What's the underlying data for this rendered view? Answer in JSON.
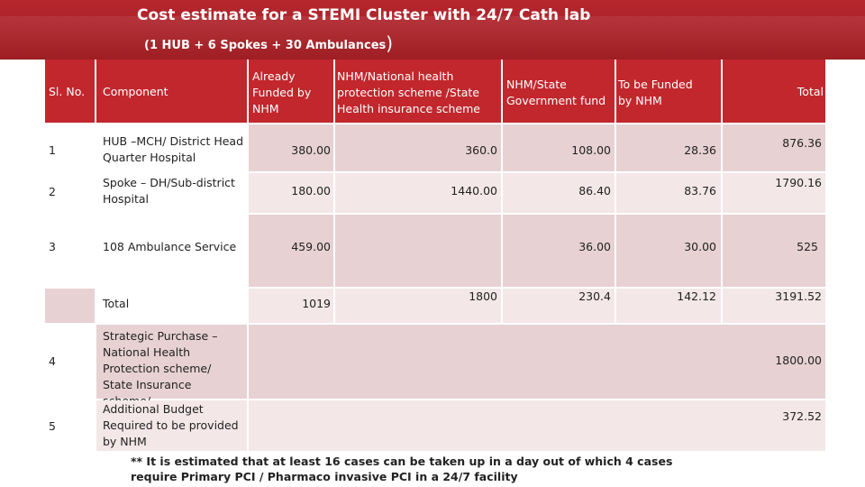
{
  "title": "Cost estimate for a STEMI Cluster with 24/7 Cath lab",
  "subtitle": "(1 HUB + 6 Spokes + 30 Ambulances",
  "subtitle_close": ")",
  "table": {
    "headers": {
      "sl_no": "Sl. No.",
      "component": "Component",
      "already_funded": "Already Funded by NHM",
      "nhm_national": "NHM/National health protection scheme /State Health insurance scheme",
      "nhm_state": "NHM/State Government fund",
      "to_be_funded": "To be Funded by NHM",
      "total": "Total"
    },
    "rows": [
      {
        "sl": "1",
        "component": "HUB –MCH/ District Head Quarter Hospital",
        "already_funded": "380.00",
        "nhm_national": "360.0",
        "nhm_state": "108.00",
        "to_be_funded": "28.36",
        "total": "876.36"
      },
      {
        "sl": "2",
        "component": "Spoke – DH/Sub-district Hospital",
        "already_funded": "180.00",
        "nhm_national": "1440.00",
        "nhm_state": "86.40",
        "to_be_funded": "83.76",
        "total": "1790.16"
      },
      {
        "sl": "3",
        "component": "108 Ambulance Service",
        "already_funded": "459.00",
        "nhm_national": "",
        "nhm_state": "36.00",
        "to_be_funded": "30.00",
        "total": "525"
      }
    ],
    "total_row": {
      "label": "Total",
      "already_funded": "1019",
      "nhm_national": "1800",
      "nhm_state": "230.4",
      "to_be_funded": "142.12",
      "total": "3191.52"
    },
    "extra_rows": [
      {
        "sl": "4",
        "component": "Strategic Purchase – National Health Protection scheme/ State Insurance scheme/",
        "total": "1800.00"
      },
      {
        "sl": "5",
        "component": "Additional Budget Required to be provided by NHM",
        "total": "372.52"
      }
    ]
  },
  "footnote": "** It is estimated that at least 16 cases can be taken up in a day out of which 4 cases require Primary PCI / Pharmaco invasive PCI in a 24/7 facility",
  "colors": {
    "header_red": "#c1272d",
    "banner_red": "#b6262d",
    "row_pink": "#e7d1d3",
    "row_light": "#f3e7e8"
  }
}
